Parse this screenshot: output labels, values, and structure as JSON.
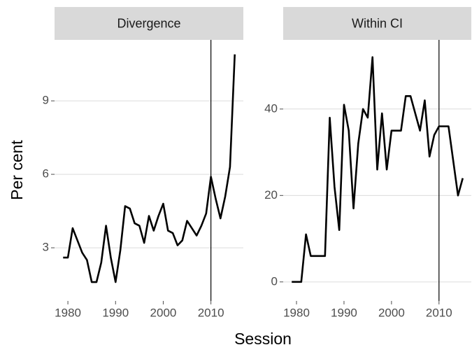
{
  "xlabel": "Session",
  "ylabel": "Per cent",
  "chart_data": [
    {
      "type": "line",
      "title": "Divergence",
      "x": [
        1979,
        1980,
        1981,
        1982,
        1983,
        1984,
        1985,
        1986,
        1987,
        1988,
        1989,
        1990,
        1991,
        1992,
        1993,
        1994,
        1995,
        1996,
        1997,
        1998,
        1999,
        2000,
        2001,
        2002,
        2003,
        2004,
        2005,
        2006,
        2007,
        2008,
        2009,
        2010,
        2011,
        2012,
        2013,
        2014,
        2015
      ],
      "values": [
        2.6,
        2.6,
        3.8,
        3.3,
        2.8,
        2.5,
        1.6,
        1.6,
        2.4,
        3.9,
        2.6,
        1.6,
        2.9,
        4.7,
        4.6,
        4.0,
        3.9,
        3.2,
        4.3,
        3.7,
        4.3,
        4.8,
        3.7,
        3.6,
        3.1,
        3.3,
        4.1,
        3.8,
        3.5,
        3.9,
        4.4,
        5.9,
        5.0,
        4.2,
        5.1,
        6.3,
        10.9
      ],
      "color": "#000000",
      "vline": 2010,
      "xlim": [
        1977.2,
        2016.8
      ],
      "xticks": [
        1980,
        1990,
        2000,
        2010
      ],
      "ylim": [
        0.83,
        11.49
      ],
      "yticks": [
        3,
        6,
        9
      ],
      "grid": true
    },
    {
      "type": "line",
      "title": "Within CI",
      "x": [
        1979,
        1980,
        1981,
        1982,
        1983,
        1984,
        1985,
        1986,
        1987,
        1988,
        1989,
        1990,
        1991,
        1992,
        1993,
        1994,
        1995,
        1996,
        1997,
        1998,
        1999,
        2000,
        2001,
        2002,
        2003,
        2004,
        2005,
        2006,
        2007,
        2008,
        2009,
        2010,
        2011,
        2012,
        2013,
        2014,
        2015
      ],
      "values": [
        0,
        0,
        0,
        11,
        6,
        6,
        6,
        6,
        38,
        22,
        12,
        41,
        35,
        17,
        32,
        40,
        38,
        52,
        26,
        39,
        26,
        35,
        35,
        35,
        43,
        43,
        39,
        35,
        42,
        29,
        34,
        36,
        36,
        36,
        28,
        20,
        24
      ],
      "color": "#000000",
      "vline": 2010,
      "xlim": [
        1977.2,
        2016.8
      ],
      "xticks": [
        1980,
        1990,
        2000,
        2010
      ],
      "ylim": [
        -4.4,
        56
      ],
      "yticks": [
        0,
        20,
        40
      ],
      "grid": true
    }
  ]
}
